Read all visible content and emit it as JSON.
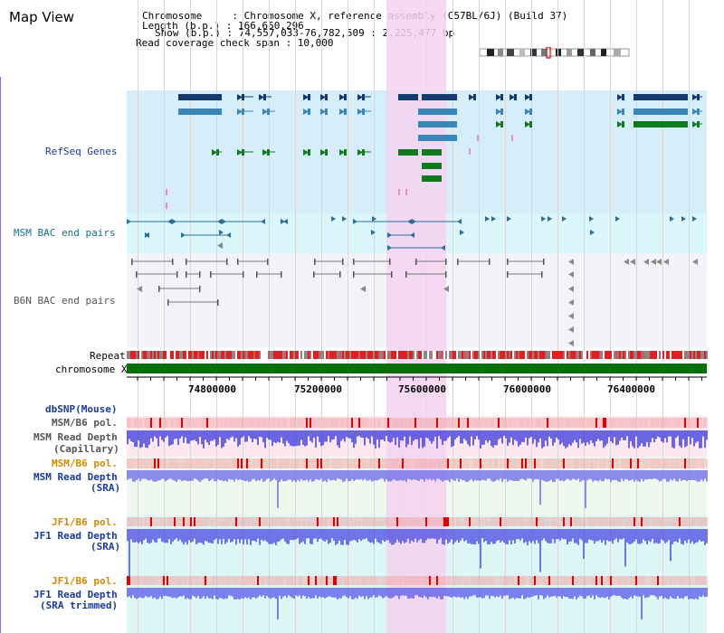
{
  "app_title": "Map View",
  "info": {
    "chromosome_line": "Chromosome     : Chromosome X, reference assembly (C57BL/6J) (Build 37)",
    "length_line": "Length (b.p.) : 166,650,296",
    "show_line": "Show (b.p.) : 74,557,033-76,782,509 : 2,225,477 bp",
    "coverage_line": "Read coverage check span : 10,000"
  },
  "tracks": {
    "refseq": "RefSeq Genes",
    "msm_bac": "MSM BAC end pairs",
    "b6n_bac": "B6N BAC end pairs",
    "repeat": "Repeat",
    "chromosome": "chromosome X",
    "dbsnp": "dbSNP(Mouse)",
    "msm_b6_pol_1": "MSM/B6 pol.",
    "msm_depth_cap_1": "MSM Read Depth",
    "msm_depth_cap_2": "(Capillary)",
    "msm_b6_pol_2": "MSM/B6 pol.",
    "msm_depth_sra_1": "MSM Read Depth",
    "msm_depth_sra_2": "(SRA)",
    "jf1_b6_pol_1": "JF1/B6 pol.",
    "jf1_depth_sra_1": "JF1 Read Depth",
    "jf1_depth_sra_2": "(SRA)",
    "jf1_b6_pol_2": "JF1/B6 pol.",
    "jf1_depth_trim_1": "JF1 Read Depth",
    "jf1_depth_trim_2": "(SRA trimmed)"
  },
  "axis": {
    "ticks": [
      "74800000",
      "75200000",
      "75600000",
      "76000000",
      "76400000"
    ]
  },
  "colors": {
    "refseq_bg": "#d6eefa",
    "bac_bg": "#dcf7fb",
    "b6n_bg": "#f4f4f8",
    "highlight": "#f5d2f0",
    "gene_dark": "#143a6e",
    "gene_mid": "#3a86b8",
    "gene_green": "#0f7a1e",
    "bac_line": "#2b6e98",
    "chrom_bar": "#0a6e0a",
    "label_blue": "#1a3aa0",
    "label_orange": "#d48a00",
    "label_teal": "#1a6e8a",
    "depth_blue": "#3a3adc"
  }
}
